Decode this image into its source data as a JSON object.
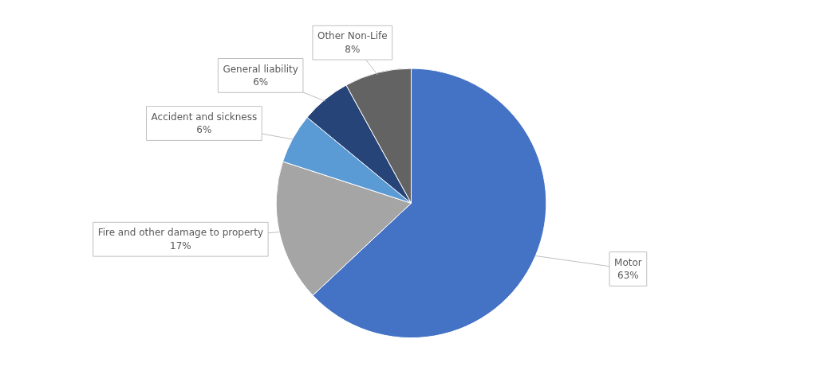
{
  "chart_data": {
    "type": "pie",
    "categories": [
      "Motor",
      "Fire and other damage to property",
      "Accident and sickness",
      "General liability",
      "Other Non-Life"
    ],
    "values": [
      63,
      17,
      6,
      6,
      8
    ],
    "colors": [
      "#4472c4",
      "#a5a5a5",
      "#5b9bd5",
      "#264478",
      "#636363"
    ],
    "value_labels": [
      "63%",
      "17%",
      "6%",
      "6%",
      "8%"
    ]
  }
}
